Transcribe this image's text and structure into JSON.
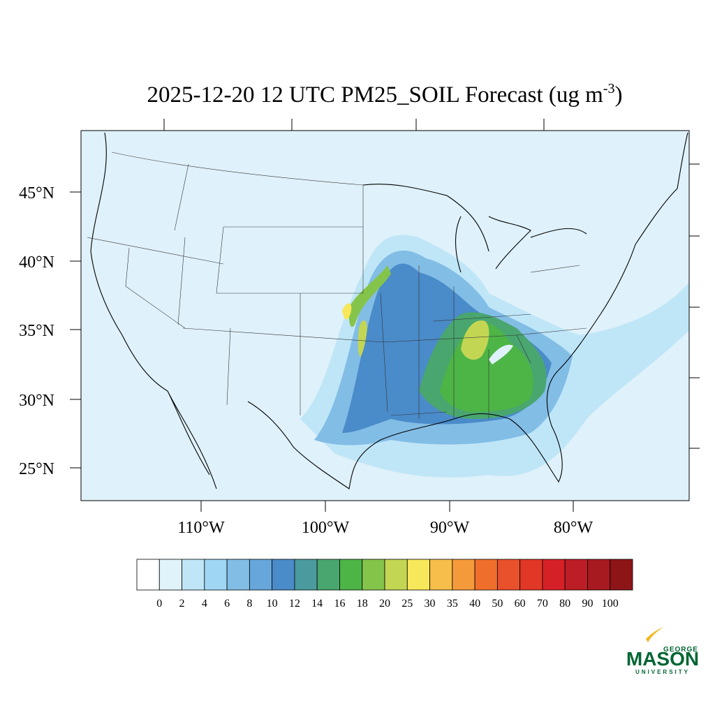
{
  "title": {
    "text": "2025-12-20 12 UTC PM25_SOIL Forecast (ug m",
    "superscript": "-3",
    "closing": ")"
  },
  "map": {
    "latitude_labels": [
      "45°N",
      "40°N",
      "35°N",
      "30°N",
      "25°N"
    ],
    "longitude_labels": [
      "110°W",
      "100°W",
      "90°W",
      "80°W"
    ]
  },
  "colorbar": {
    "colors": [
      "#ffffff",
      "#e0f3fb",
      "#bfe6f7",
      "#9fd6f3",
      "#82bde6",
      "#66a6da",
      "#4a8bc9",
      "#4a9a9e",
      "#49a66f",
      "#4db446",
      "#85c44a",
      "#c3d653",
      "#f7e75a",
      "#f7be4a",
      "#f59a3a",
      "#f06e2b",
      "#e8512b",
      "#e03726",
      "#d62027",
      "#bd1e25",
      "#a71b20",
      "#8d1518"
    ],
    "labels": [
      0,
      2,
      4,
      6,
      8,
      10,
      12,
      14,
      16,
      18,
      20,
      25,
      30,
      35,
      40,
      50,
      60,
      70,
      80,
      90,
      100
    ]
  },
  "logo": {
    "top": "GEORGE",
    "main": "MASON",
    "bottom": "UNIVERSITY"
  }
}
